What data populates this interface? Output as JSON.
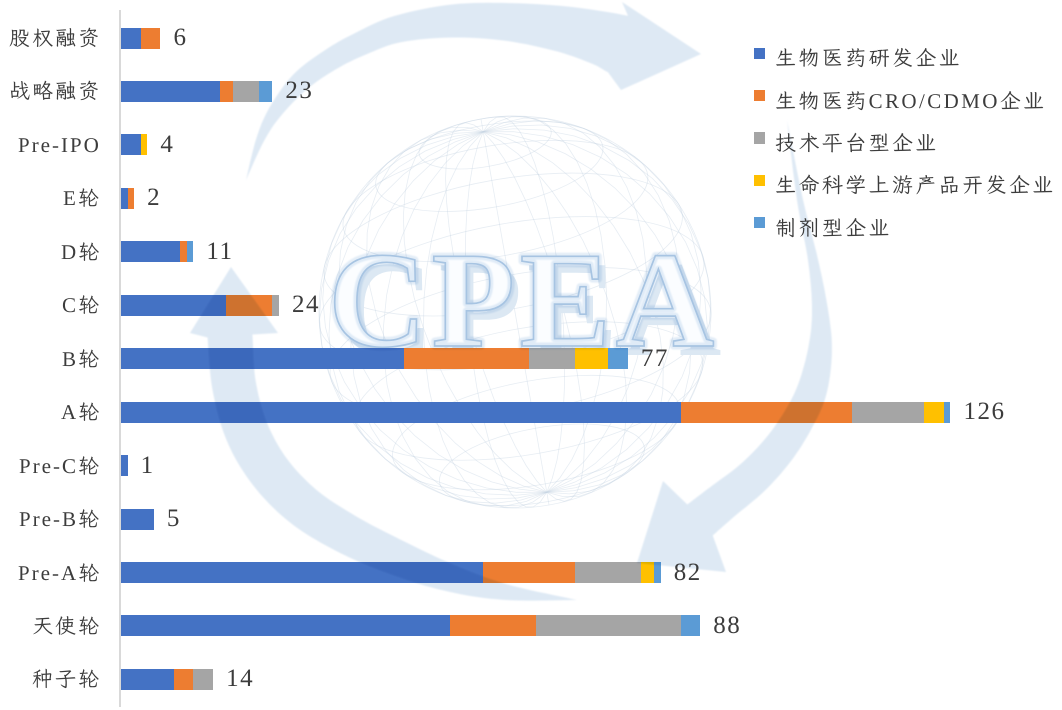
{
  "chart_data": {
    "type": "bar",
    "orientation": "horizontal",
    "stacked": true,
    "categories": [
      "股权融资",
      "战略融资",
      "Pre-IPO",
      "E轮",
      "D轮",
      "C轮",
      "B轮",
      "A轮",
      "Pre-C轮",
      "Pre-B轮",
      "Pre-A轮",
      "天使轮",
      "种子轮"
    ],
    "series": [
      {
        "name": "生物医药研发企业",
        "color": "#4472C4",
        "values": [
          3,
          15,
          3,
          1,
          9,
          16,
          43,
          85,
          1,
          5,
          55,
          50,
          8
        ]
      },
      {
        "name": "生物医药CRO/CDMO企业",
        "color": "#ED7D31",
        "values": [
          3,
          2,
          0,
          1,
          1,
          7,
          19,
          26,
          0,
          0,
          14,
          13,
          3
        ]
      },
      {
        "name": "技术平台型企业",
        "color": "#A5A5A5",
        "values": [
          0,
          4,
          0,
          0,
          0,
          1,
          7,
          11,
          0,
          0,
          10,
          22,
          3
        ]
      },
      {
        "name": "生命科学上游产品开发企业",
        "color": "#FFC000",
        "values": [
          0,
          0,
          1,
          0,
          0,
          0,
          5,
          3,
          0,
          0,
          2,
          0,
          0
        ]
      },
      {
        "name": "制剂型企业",
        "color": "#5B9BD5",
        "values": [
          0,
          2,
          0,
          0,
          1,
          0,
          3,
          1,
          0,
          0,
          1,
          3,
          0
        ]
      }
    ],
    "totals": [
      6,
      23,
      4,
      2,
      11,
      24,
      77,
      126,
      1,
      5,
      82,
      88,
      14
    ],
    "value_labels_shown": true,
    "grid": false,
    "legend_position": "right-top",
    "xlim": [
      0,
      140
    ],
    "axis_line_color": "#D9D9D9",
    "text_color": "#3C3C3C"
  },
  "legend": {
    "items": [
      {
        "label": "生物医药研发企业",
        "color": "#4472C4"
      },
      {
        "label": "生物医药CRO/CDMO企业",
        "color": "#ED7D31"
      },
      {
        "label": "技术平台型企业",
        "color": "#A5A5A5"
      },
      {
        "label": "生命科学上游产品开发企业",
        "color": "#FFC000"
      },
      {
        "label": "制剂型企业",
        "color": "#5B9BD5"
      }
    ]
  },
  "watermark": {
    "text": "CPEA",
    "arrow_color": "#BDD7EE",
    "globe_line_color": "#C6D5E3",
    "letter_outline_color": "#BCD3EA"
  }
}
